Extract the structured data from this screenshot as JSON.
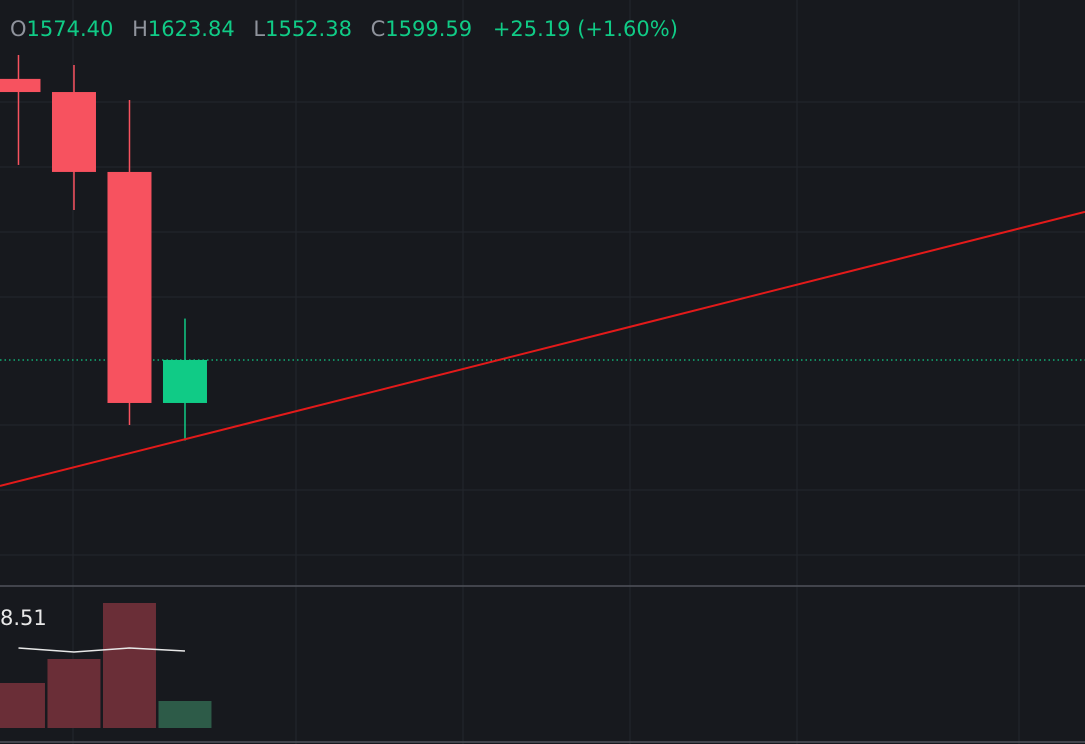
{
  "chart_data": {
    "type": "candlestick",
    "header": {
      "open_key": "O",
      "open": "1574.40",
      "high_key": "H",
      "high": "1623.84",
      "low_key": "L",
      "low": "1552.38",
      "close_key": "C",
      "close": "1599.59",
      "change": "+25.19",
      "change_pct": "(+1.60%)"
    },
    "x": [
      0,
      1,
      2,
      3
    ],
    "open": [
      1764.2,
      1756.5,
      1709.7,
      1574.4
    ],
    "high": [
      1778.2,
      1772.3,
      1751.8,
      1623.84
    ],
    "low": [
      1713.8,
      1687.4,
      1561.5,
      1552.38
    ],
    "close": [
      1756.5,
      1709.7,
      1574.4,
      1599.59
    ],
    "up_color": "#10cb86",
    "down_color": "#f7525f",
    "xlim": [
      -0.333,
      19.216
    ],
    "ylim": [
      1467.8,
      1810.4
    ],
    "trendline": {
      "x": [
        -0.333,
        19.216
      ],
      "values": [
        1525.8,
        1686.3
      ],
      "color": "#e31a1a"
    },
    "volume": {
      "values": [
        45,
        69,
        125,
        27
      ],
      "ma": [
        80,
        76,
        80,
        77
      ],
      "ma_label": "8.51",
      "ylim": [
        0,
        141
      ],
      "up_color": "#2d5b48",
      "down_color": "#6a2e37"
    }
  }
}
